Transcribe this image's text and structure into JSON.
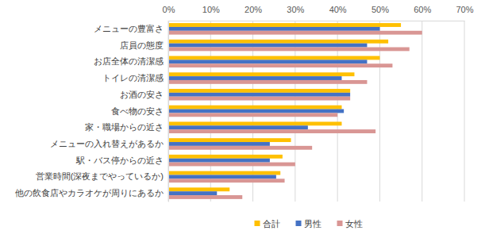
{
  "chart_data": {
    "type": "bar",
    "orientation": "horizontal",
    "grid": true,
    "legend": "bottom",
    "categories": [
      "メニューの豊富さ",
      "店員の態度",
      "お店全体の清潔感",
      "トイレの清潔感",
      "お酒の安さ",
      "食べ物の安さ",
      "家・職場からの近さ",
      "メニューの入れ替えがあるか",
      "駅・バス停からの近さ",
      "営業時間(深夜までやっているか)",
      "他の飲食店やカラオケが周りにあるか"
    ],
    "series": [
      {
        "name": "合計",
        "color": "#ffc000",
        "values": [
          55,
          52,
          50,
          44,
          43,
          41,
          41,
          29,
          27,
          26.5,
          14.5
        ]
      },
      {
        "name": "男性",
        "color": "#4472c4",
        "values": [
          50,
          47,
          47,
          41,
          43,
          41.5,
          33,
          24,
          24,
          25.5,
          11.5
        ]
      },
      {
        "name": "女性",
        "color": "#d99694",
        "values": [
          60,
          57,
          53,
          47,
          43,
          40,
          49,
          34,
          30,
          27.5,
          17.5
        ]
      }
    ],
    "xlim": [
      0,
      70
    ],
    "xticks": [
      {
        "value": 0,
        "label": "0%"
      },
      {
        "value": 10,
        "label": "10%"
      },
      {
        "value": 20,
        "label": "20%"
      },
      {
        "value": 30,
        "label": "30%"
      },
      {
        "value": 40,
        "label": "40%"
      },
      {
        "value": 50,
        "label": "50%"
      },
      {
        "value": 60,
        "label": "60%"
      },
      {
        "value": 70,
        "label": "70%"
      }
    ]
  }
}
